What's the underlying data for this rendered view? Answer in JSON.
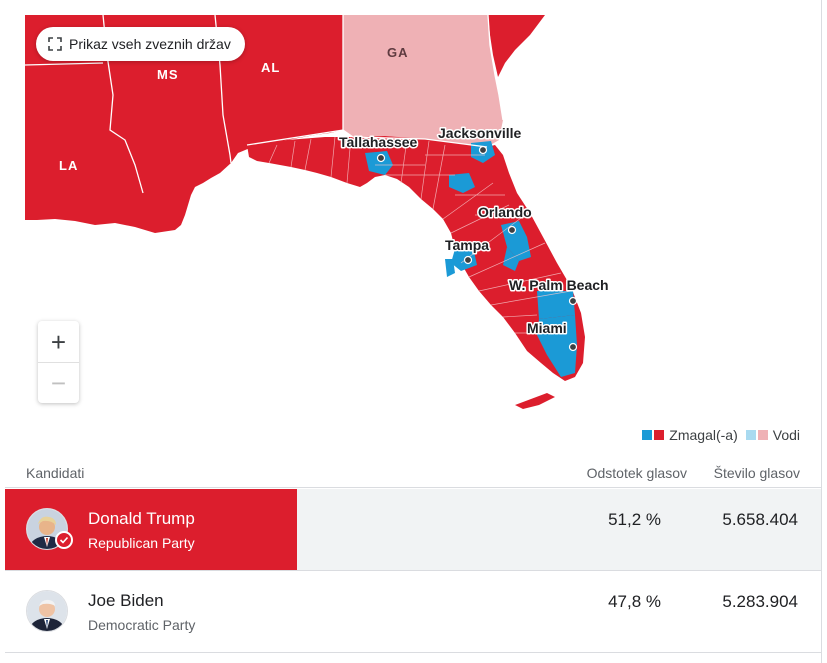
{
  "map": {
    "show_all_button": "Prikaz vseh zveznih držav",
    "state_labels": {
      "ms": "MS",
      "al": "AL",
      "la": "LA",
      "ga": "GA"
    },
    "cities": {
      "tallahassee": "Tallahassee",
      "jacksonville": "Jacksonville",
      "orlando": "Orlando",
      "tampa": "Tampa",
      "west_palm_beach": "W. Palm Beach",
      "miami": "Miami"
    },
    "zoom_in": "+",
    "zoom_out": "−",
    "colors": {
      "republican_won": "#dc1e2d",
      "republican_leading": "#efb1b5",
      "democrat_won": "#1b9ad6",
      "democrat_leading": "#a9daf0",
      "water": "#ffffff"
    }
  },
  "legend": {
    "won_label": "Zmagal(-a)",
    "leading_label": "Vodi"
  },
  "table": {
    "header": {
      "candidates": "Kandidati",
      "vote_percent": "Odstotek glasov",
      "vote_count": "Število glasov"
    },
    "rows": [
      {
        "name": "Donald Trump",
        "party": "Republican Party",
        "percent": "51,2 %",
        "votes": "5.658.404",
        "winner": true,
        "percent_value": 51.2
      },
      {
        "name": "Joe Biden",
        "party": "Democratic Party",
        "percent": "47,8 %",
        "votes": "5.283.904",
        "winner": false,
        "percent_value": 47.8
      }
    ]
  }
}
